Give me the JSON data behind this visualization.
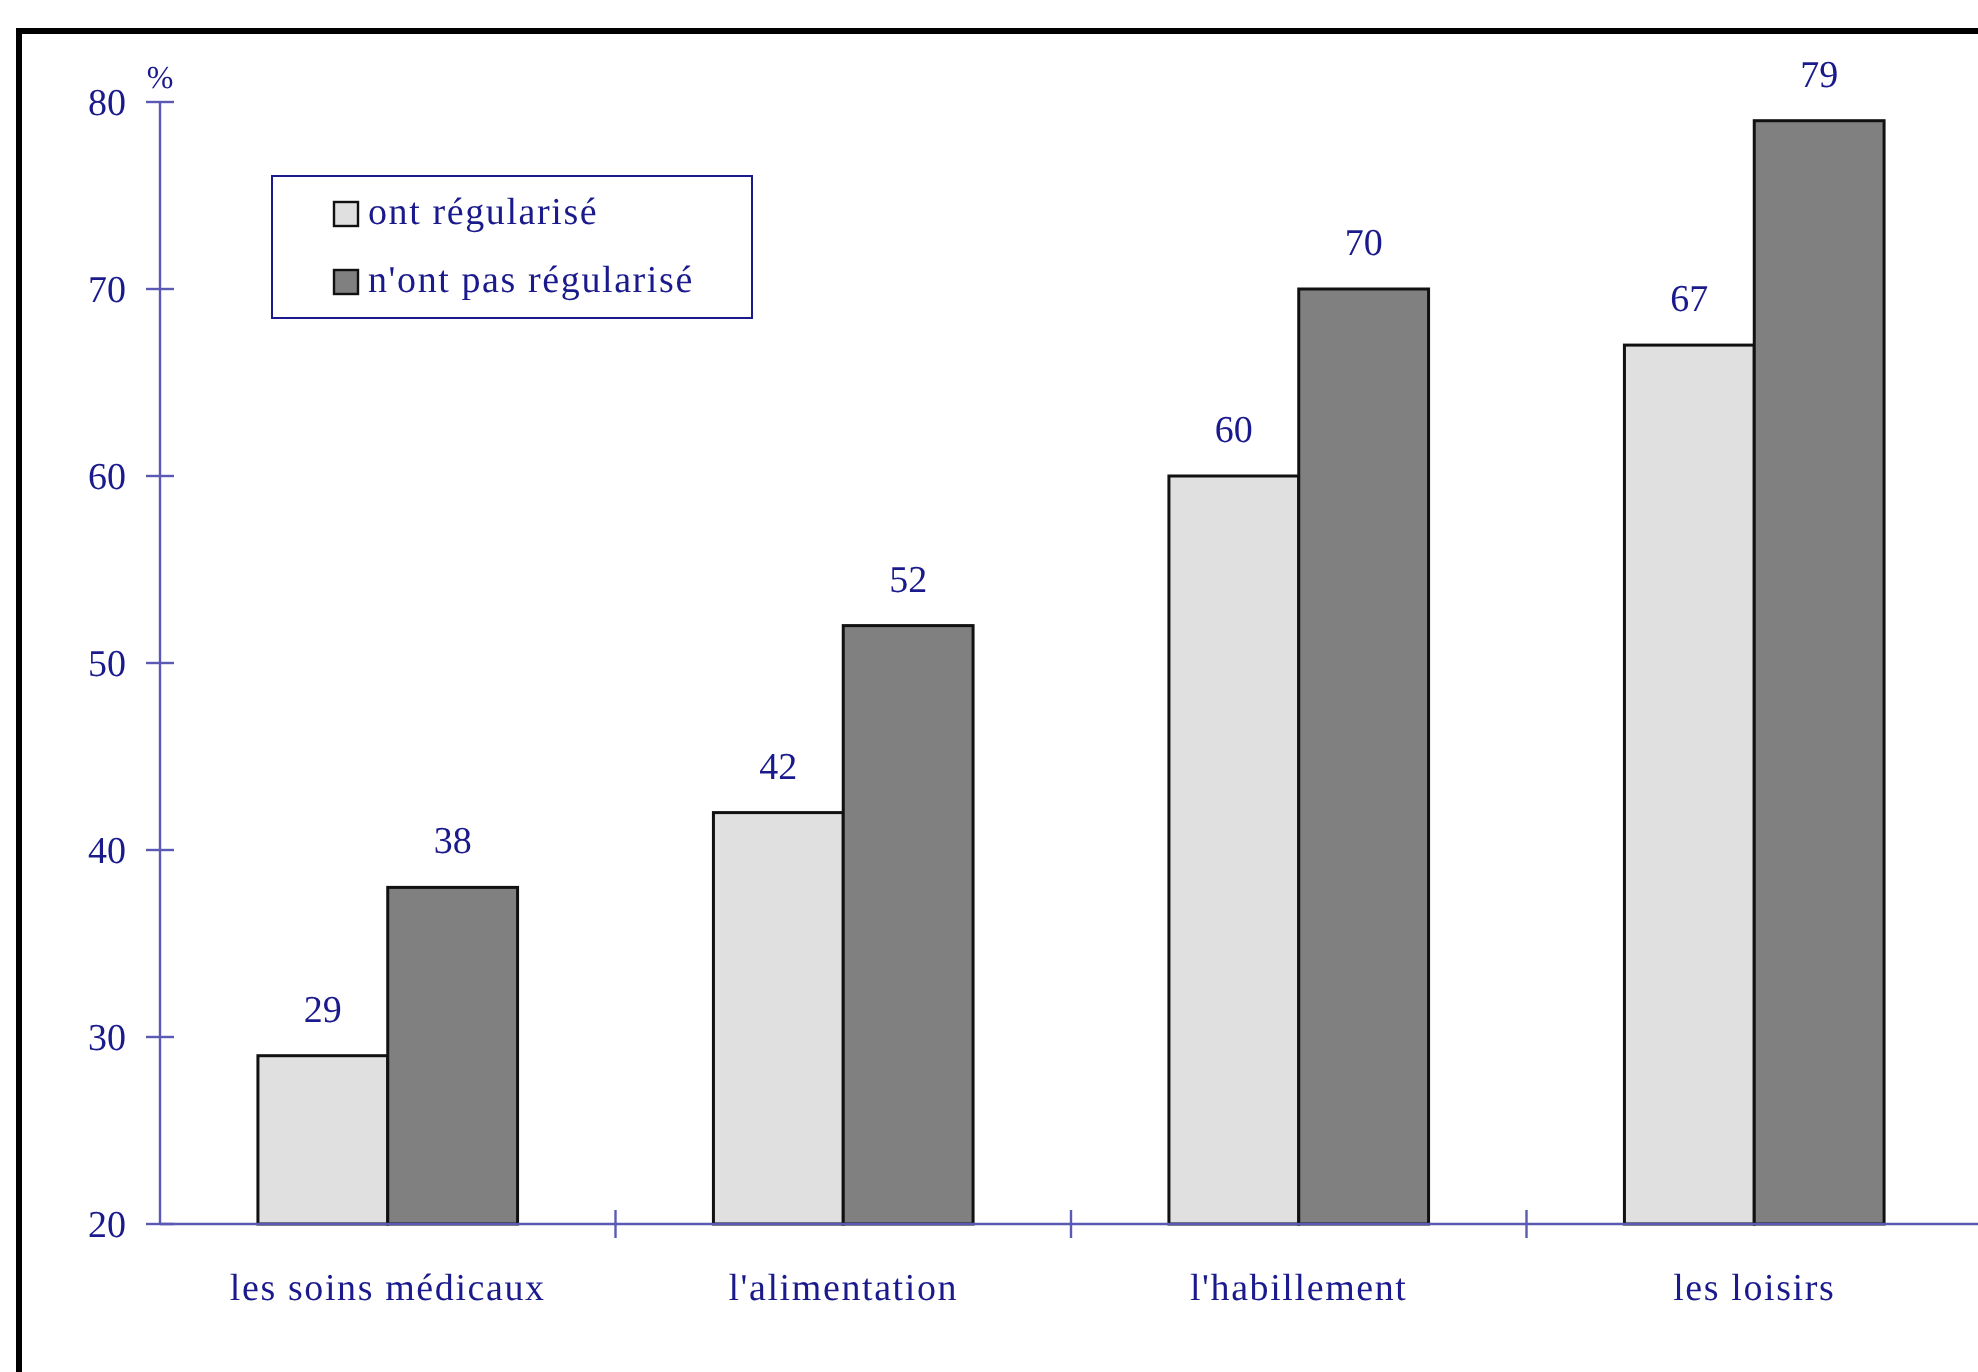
{
  "chart_data": {
    "type": "bar",
    "ylabel": "%",
    "categories": [
      "les soins médicaux",
      "l'alimentation",
      "l'habillement",
      "les loisirs"
    ],
    "series": [
      {
        "name": "ont régularisé",
        "color": "#e0e0e0",
        "values": [
          29,
          42,
          60,
          67
        ]
      },
      {
        "name": "n'ont pas régularisé",
        "color": "#808080",
        "values": [
          38,
          52,
          70,
          79
        ]
      }
    ],
    "ylim": [
      20,
      80
    ],
    "yticks": [
      20,
      30,
      40,
      50,
      60,
      70,
      80
    ],
    "data_labels": true,
    "legend": "top left",
    "grid": false
  }
}
